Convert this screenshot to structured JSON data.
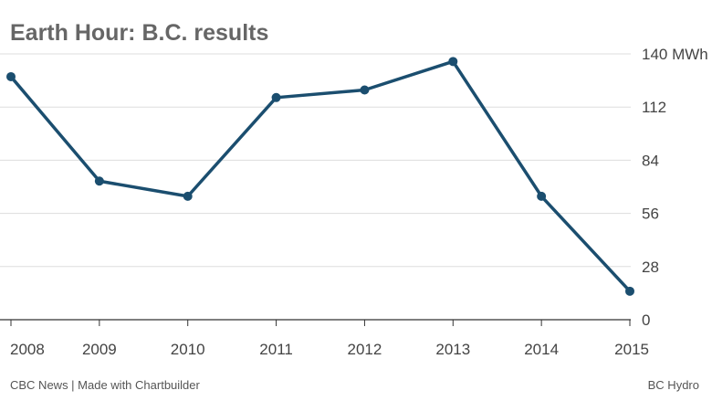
{
  "title": "Earth Hour: B.C. results",
  "footer": {
    "credit": "CBC News | Made with Chartbuilder",
    "source": "BC Hydro"
  },
  "colors": {
    "line": "#1b4e6f",
    "grid": "#dddddd",
    "axis": "#333333",
    "tick_text": "#444444"
  },
  "chart_data": {
    "type": "line",
    "title": "Earth Hour: B.C. results",
    "xlabel": "",
    "ylabel": "",
    "y_unit": "MWh",
    "x": [
      2008,
      2009,
      2010,
      2011,
      2012,
      2013,
      2014,
      2015
    ],
    "x_tick_labels": [
      "2008",
      "2009",
      "2010",
      "2011",
      "2012",
      "2013",
      "2014",
      "2015"
    ],
    "series": [
      {
        "values": [
          128,
          73,
          65,
          117,
          121,
          136,
          65,
          15
        ]
      }
    ],
    "ylim": [
      0,
      140
    ],
    "y_ticks": [
      0,
      28,
      56,
      84,
      112,
      140
    ],
    "y_tick_labels": [
      "0",
      "28",
      "56",
      "84",
      "112",
      "140 MWh"
    ],
    "grid": true,
    "y_axis_side": "right",
    "legend": "none"
  }
}
